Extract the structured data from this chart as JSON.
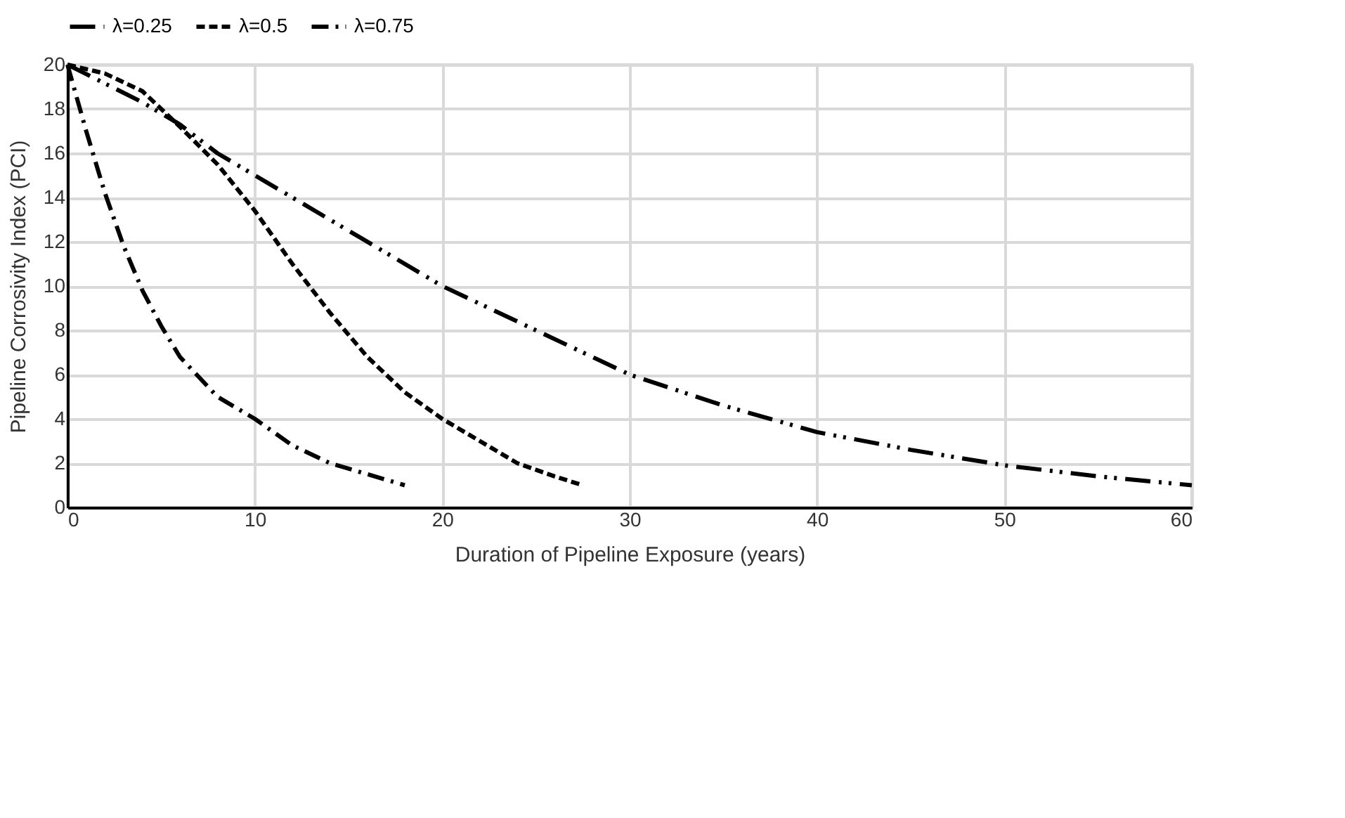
{
  "chart_data": {
    "type": "line",
    "xlabel": "Duration of Pipeline Exposure (years)",
    "ylabel": "Pipeline Corrosivity Index (PCI)",
    "xlim": [
      0,
      60
    ],
    "xticks": [
      0,
      10,
      20,
      30,
      40,
      50,
      60
    ],
    "ylim": [
      0,
      20
    ],
    "yticks": [
      0,
      2,
      4,
      6,
      8,
      10,
      12,
      14,
      16,
      18,
      20
    ],
    "grid": true,
    "legend": "top",
    "marker": "none",
    "series": [
      {
        "name": "λ=0.25",
        "color": "#000000",
        "line_style": "dash-dot-dot",
        "x": [
          0,
          4,
          6,
          8,
          10,
          15,
          20,
          25,
          30,
          35,
          40,
          45,
          50,
          55,
          60
        ],
        "values": [
          20,
          18.3,
          17.3,
          16,
          15,
          12.5,
          10,
          8,
          6,
          4.6,
          3.4,
          2.6,
          1.9,
          1.4,
          1
        ]
      },
      {
        "name": "λ=0.5",
        "color": "#000000",
        "line_style": "dashed",
        "x": [
          0,
          2,
          4,
          6,
          8,
          10,
          12,
          14,
          16,
          18,
          20,
          22,
          24,
          26,
          27.5
        ],
        "values": [
          20,
          19.6,
          18.8,
          17.2,
          15.5,
          13.4,
          11,
          8.8,
          6.8,
          5.2,
          4,
          3,
          2,
          1.4,
          1
        ]
      },
      {
        "name": "λ=0.75",
        "color": "#000000",
        "line_style": "dash-dot",
        "x": [
          0,
          1,
          2,
          3,
          4,
          5,
          6,
          8,
          10,
          12,
          14,
          16,
          18
        ],
        "values": [
          20,
          17,
          14.2,
          11.8,
          9.8,
          8.2,
          6.8,
          5,
          4,
          2.8,
          2,
          1.5,
          1
        ]
      }
    ]
  }
}
